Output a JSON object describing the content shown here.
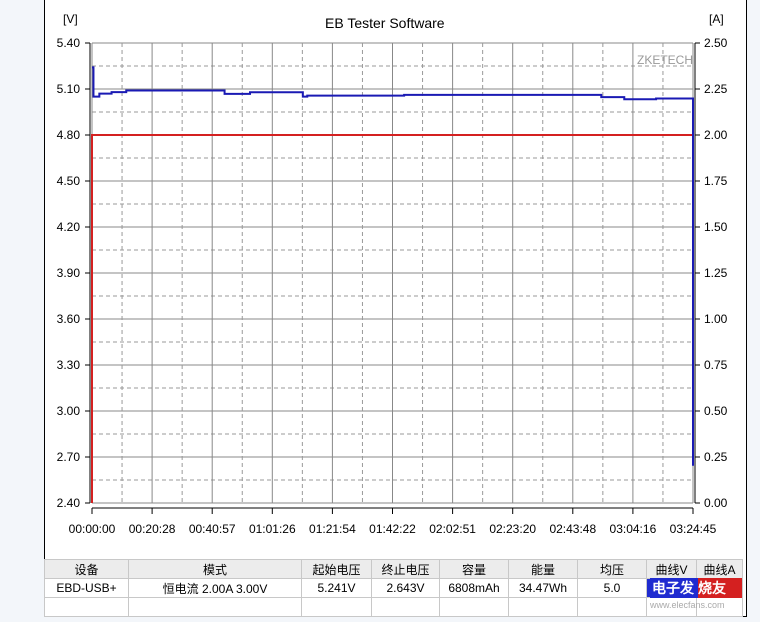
{
  "chart_data": {
    "type": "line",
    "title": "EB Tester Software",
    "watermark": "ZKETECH",
    "y_left_label": "[V]",
    "y_right_label": "[A]",
    "y_left_lim": [
      2.4,
      5.4
    ],
    "y_right_lim": [
      0.0,
      2.5
    ],
    "y_left_ticks": [
      "5.40",
      "5.10",
      "4.80",
      "4.50",
      "4.20",
      "3.90",
      "3.60",
      "3.30",
      "3.00",
      "2.70",
      "2.40"
    ],
    "y_right_ticks": [
      "2.50",
      "2.25",
      "2.00",
      "1.75",
      "1.50",
      "1.25",
      "1.00",
      "0.75",
      "0.50",
      "0.25",
      "0.00"
    ],
    "x_ticks": [
      "00:00:00",
      "00:20:28",
      "00:40:57",
      "01:01:26",
      "01:21:54",
      "01:42:22",
      "02:02:51",
      "02:23:20",
      "02:43:48",
      "03:04:16",
      "03:24:45"
    ],
    "x_lim_seconds": [
      0,
      12285
    ],
    "grid": true,
    "series": [
      {
        "axis": "left",
        "color": "#1a1ab4",
        "points": [
          [
            0,
            5.241
          ],
          [
            30,
            5.05
          ],
          [
            150,
            5.07
          ],
          [
            400,
            5.08
          ],
          [
            700,
            5.09
          ],
          [
            2700,
            5.09
          ],
          [
            2710,
            5.068
          ],
          [
            3220,
            5.068
          ],
          [
            3230,
            5.079
          ],
          [
            4300,
            5.079
          ],
          [
            4310,
            5.05
          ],
          [
            4400,
            5.057
          ],
          [
            6370,
            5.057
          ],
          [
            6380,
            5.062
          ],
          [
            10400,
            5.062
          ],
          [
            10410,
            5.047
          ],
          [
            10870,
            5.047
          ],
          [
            10880,
            5.033
          ],
          [
            11520,
            5.033
          ],
          [
            11530,
            5.038
          ],
          [
            12265,
            5.038
          ],
          [
            12285,
            2.643
          ]
        ]
      },
      {
        "axis": "right",
        "color": "#d42020",
        "points": [
          [
            0,
            0
          ],
          [
            0,
            2.0
          ],
          [
            12280,
            2.0
          ],
          [
            12285,
            1.04
          ]
        ]
      }
    ]
  },
  "table": {
    "headers": [
      "设备",
      "模式",
      "起始电压",
      "终止电压",
      "容量",
      "能量",
      "均压",
      "曲线V",
      "曲线A"
    ],
    "row": [
      "EBD-USB+",
      "恒电流  2.00A  3.00V",
      "5.241V",
      "2.643V",
      "6808mAh",
      "34.47Wh",
      "5.0"
    ]
  },
  "logo": {
    "text": "电子发烧友",
    "url": "www.elecfans.com"
  }
}
